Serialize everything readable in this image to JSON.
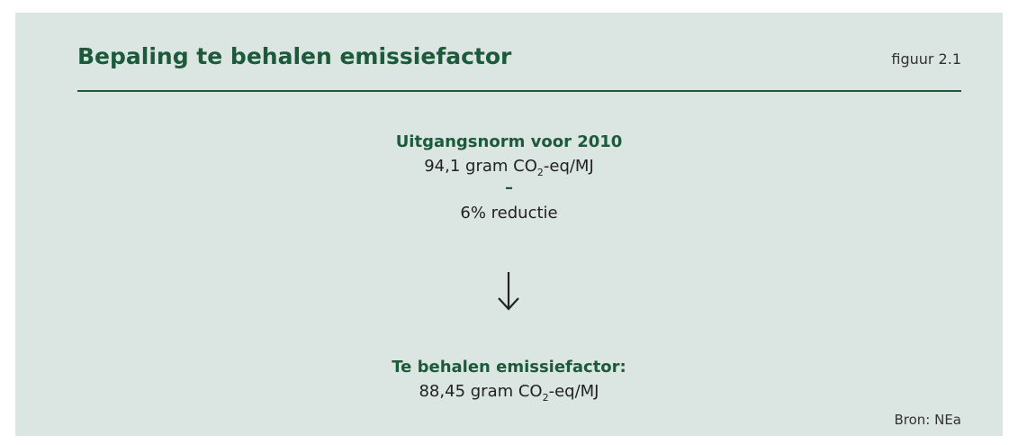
{
  "header": {
    "title": "Bepaling te behalen emissiefactor",
    "figure_label": "figuur 2.1"
  },
  "steps": [
    {
      "heading": "Uitgangsnorm voor 2010",
      "value": {
        "before": "94,1 gram CO",
        "sub": "2",
        "after": "-eq/MJ"
      },
      "operator": "–",
      "modifier": "6% reductie"
    },
    {
      "heading": "Te behalen emissiefactor:",
      "value": {
        "before": "88,45 gram CO",
        "sub": "2",
        "after": "-eq/MJ"
      }
    }
  ],
  "source": "Bron: NEa"
}
